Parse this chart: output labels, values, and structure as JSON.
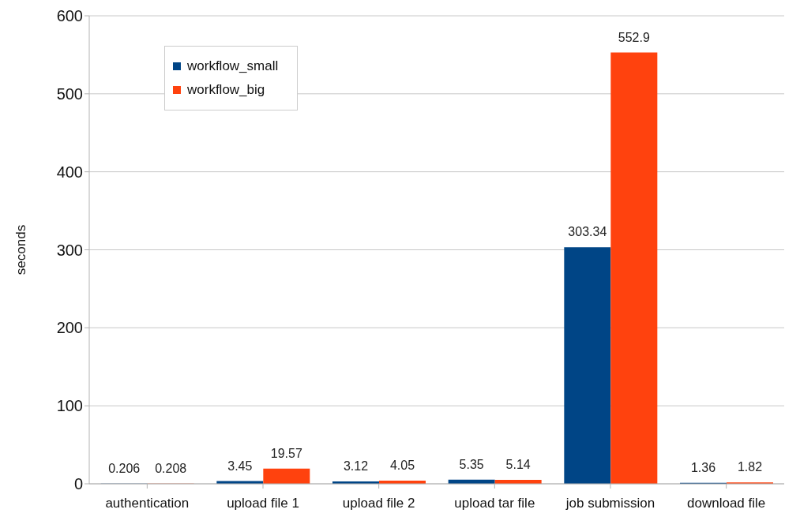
{
  "chart_data": {
    "type": "bar",
    "ylabel": "seconds",
    "categories": [
      "authentication",
      "upload file 1",
      "upload file 2",
      "upload tar file",
      "job submission",
      "download file"
    ],
    "series": [
      {
        "name": "workflow_small",
        "color": "#004586",
        "values": [
          0.206,
          3.45,
          3.12,
          5.35,
          303.34,
          1.36
        ]
      },
      {
        "name": "workflow_big",
        "color": "#ff420e",
        "values": [
          0.208,
          19.57,
          4.05,
          5.14,
          552.9,
          1.82
        ]
      }
    ],
    "ylim": [
      0,
      600
    ],
    "yticks": [
      0,
      100,
      200,
      300,
      400,
      500,
      600
    ],
    "grid": "y",
    "legend": "top left",
    "data_labels": true
  }
}
